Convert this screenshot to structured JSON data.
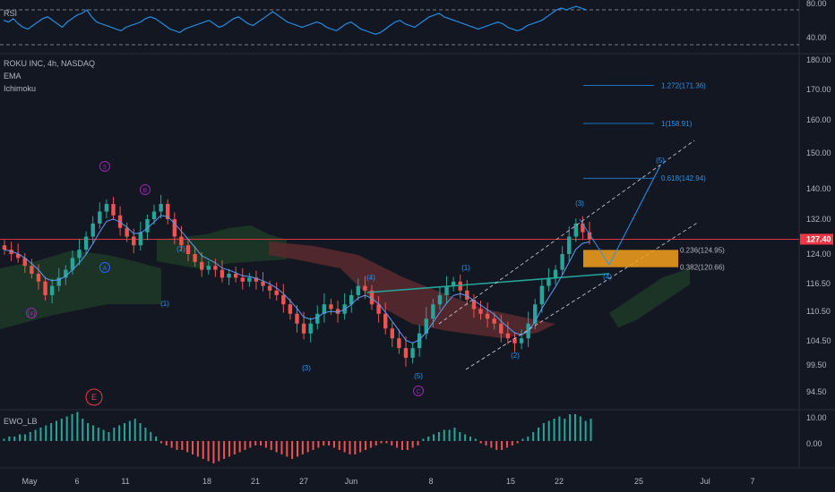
{
  "header": {
    "symbol_line": "ROKU INC, 4h, NASDAQ",
    "indicators": [
      "EMA",
      "Ichimoku"
    ]
  },
  "rsi_panel": {
    "label": "RSI",
    "ticks": [
      "80.00",
      "40.00"
    ],
    "values": [
      68,
      66,
      70,
      64,
      60,
      58,
      62,
      66,
      70,
      72,
      68,
      64,
      60,
      66,
      70,
      74,
      76,
      80,
      72,
      66,
      64,
      62,
      60,
      58,
      56,
      60,
      62,
      64,
      66,
      70,
      72,
      70,
      66,
      62,
      58,
      56,
      54,
      58,
      60,
      62,
      64,
      66,
      68,
      64,
      60,
      62,
      66,
      70,
      72,
      68,
      64,
      62,
      66,
      70,
      74,
      78,
      74,
      70,
      66,
      64,
      62,
      60,
      62,
      64,
      66,
      64,
      60,
      58,
      56,
      60,
      64,
      66,
      62,
      58,
      56,
      54,
      52,
      54,
      58,
      62,
      66,
      68,
      64,
      62,
      60,
      64,
      68,
      72,
      74,
      76,
      72,
      70,
      68,
      66,
      64,
      62,
      60,
      58,
      60,
      62,
      64,
      66,
      64,
      60,
      58,
      56,
      58,
      62,
      64,
      66,
      68,
      72,
      76,
      80,
      82,
      80,
      82,
      84,
      82,
      80
    ]
  },
  "ewo_panel": {
    "label": "EWO_LB",
    "ticks": [
      "10.00",
      "0.00"
    ],
    "values": [
      1,
      2,
      2,
      3,
      3,
      4,
      5,
      6,
      7,
      8,
      9,
      10,
      11,
      12,
      13,
      10,
      8,
      7,
      6,
      5,
      4,
      6,
      7,
      8,
      9,
      10,
      8,
      6,
      4,
      2,
      -1,
      -2,
      -3,
      -4,
      -4,
      -5,
      -6,
      -7,
      -8,
      -9,
      -10,
      -9,
      -8,
      -7,
      -6,
      -5,
      -4,
      -3,
      -2,
      -2,
      -3,
      -4,
      -5,
      -6,
      -7,
      -8,
      -7,
      -6,
      -5,
      -4,
      -3,
      -2,
      -2,
      -3,
      -4,
      -5,
      -6,
      -6,
      -5,
      -4,
      -3,
      -2,
      -1,
      -1,
      -2,
      -3,
      -4,
      -4,
      -3,
      -2,
      1,
      2,
      3,
      4,
      5,
      5,
      6,
      4,
      3,
      2,
      1,
      -1,
      -2,
      -3,
      -4,
      -4,
      -3,
      -2,
      -1,
      1,
      2,
      4,
      6,
      8,
      9,
      10,
      11,
      10,
      12,
      12,
      11,
      9,
      10
    ]
  },
  "price_axis": {
    "ticks": [
      "180.00",
      "170.00",
      "160.00",
      "150.00",
      "140.00",
      "132.00",
      "124.00",
      "116.50",
      "110.50",
      "104.50",
      "99.50",
      "94.50"
    ],
    "current_price": "127.40"
  },
  "time_axis": {
    "ticks": [
      "May",
      "6",
      "11",
      "18",
      "21",
      "27",
      "Jun",
      "8",
      "15",
      "22",
      "25",
      "Jul",
      "7"
    ]
  },
  "fibonacci": [
    {
      "label": "1.272(171.36)",
      "price": 171.36
    },
    {
      "label": "1(158.91)",
      "price": 158.91
    },
    {
      "label": "0.618(142.94)",
      "price": 142.94
    },
    {
      "label": "0.236(124.95)",
      "price": 124.95
    },
    {
      "label": "0.382(120.66)",
      "price": 120.66
    }
  ],
  "wave_labels": [
    {
      "text": "(4)",
      "color": "#9c27b0",
      "circle": true
    },
    {
      "text": "5",
      "color": "#9c27b0",
      "circle": true
    },
    {
      "text": "A",
      "color": "#2962ff",
      "circle": true
    },
    {
      "text": "B",
      "color": "#9c27b0",
      "circle": true
    },
    {
      "text": "(1)",
      "color": "#2196f3",
      "circle": false
    },
    {
      "text": "(2)",
      "color": "#2196f3",
      "circle": false
    },
    {
      "text": "(3)",
      "color": "#2196f3",
      "circle": false
    },
    {
      "text": "(4)",
      "color": "#2196f3",
      "circle": false
    },
    {
      "text": "(5)",
      "color": "#2196f3",
      "circle": false
    },
    {
      "text": "C",
      "color": "#9c27b0",
      "circle": true
    },
    {
      "text": "E",
      "color": "#f23645",
      "circle": true
    },
    {
      "text": "(1)",
      "color": "#2196f3",
      "circle": false
    },
    {
      "text": "(2)",
      "color": "#2196f3",
      "circle": false
    },
    {
      "text": "(3)",
      "color": "#2196f3",
      "circle": false
    },
    {
      "text": "(4)",
      "color": "#2196f3",
      "circle": false
    },
    {
      "text": "(5)",
      "color": "#2196f3",
      "circle": false
    }
  ],
  "colors": {
    "background": "#131722",
    "up": "#26a69a",
    "down": "#ef5350",
    "fib": "#2196f3",
    "zone": "#f7a21b",
    "price_line": "#f23645",
    "trendline": "#26a69a"
  },
  "chart_data": {
    "type": "candlestick",
    "title": "ROKU INC, 4h, NASDAQ",
    "xlabel": "",
    "ylabel": "",
    "ylim": [
      92,
      182
    ],
    "x": [
      "May",
      "6",
      "11",
      "18",
      "21",
      "27",
      "Jun",
      "8",
      "15",
      "22",
      "25",
      "Jul",
      "7"
    ],
    "close_path": [
      125,
      124,
      123,
      121,
      119,
      117,
      114,
      116,
      118,
      120,
      123,
      125,
      128,
      131,
      134,
      136,
      133,
      130,
      128,
      126,
      129,
      132,
      134,
      136,
      132,
      128,
      126,
      124,
      122,
      120,
      121,
      120,
      118,
      119,
      118,
      117,
      118,
      117,
      116,
      115,
      114,
      112,
      110,
      108,
      106,
      108,
      110,
      112,
      111,
      110,
      112,
      114,
      116,
      115,
      112,
      110,
      107,
      105,
      103,
      101,
      103,
      106,
      109,
      112,
      114,
      116,
      117,
      115,
      113,
      111,
      110,
      109,
      108,
      106,
      105,
      104,
      105,
      108,
      112,
      116,
      118,
      120,
      124,
      128,
      131,
      129,
      127.4
    ],
    "last_close": 127.4
  }
}
